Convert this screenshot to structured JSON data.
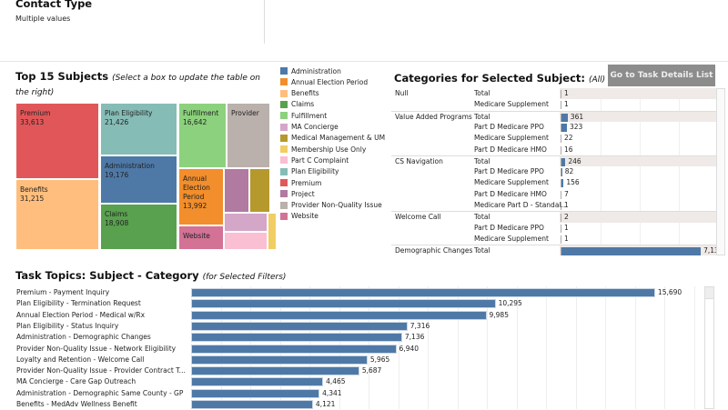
{
  "filter": {
    "title": "Contact Type",
    "value": "Multiple values"
  },
  "treemap": {
    "title": "Top 15 Subjects",
    "subtitle": "(Select a box to update the table on the right)",
    "boxes": [
      {
        "name": "Premium",
        "value": "33,613",
        "color": "#e15759"
      },
      {
        "name": "Benefits",
        "value": "31,215",
        "color": "#ffbe7d"
      },
      {
        "name": "Plan Eligibility",
        "value": "21,426",
        "color": "#86bcb6"
      },
      {
        "name": "Administration",
        "value": "19,176",
        "color": "#4e79a7"
      },
      {
        "name": "Claims",
        "value": "18,908",
        "color": "#59a14f"
      },
      {
        "name": "Fulfillment",
        "value": "16,642",
        "color": "#8cd17d"
      },
      {
        "name": "Provider",
        "value": "",
        "color": "#bab0ac"
      },
      {
        "name": "Annual Election Period",
        "value": "13,992",
        "color": "#f28e2b"
      },
      {
        "name": "Website",
        "value": "",
        "color": "#d37295"
      },
      {
        "name": "",
        "value": "",
        "color": "#b07aa1"
      },
      {
        "name": "",
        "value": "",
        "color": "#b6992d"
      },
      {
        "name": "",
        "value": "",
        "color": "#d4a6c8"
      },
      {
        "name": "",
        "value": "",
        "color": "#fabfd2"
      },
      {
        "name": "",
        "value": "",
        "color": "#f1ce63"
      }
    ]
  },
  "legend": [
    {
      "label": "Administration",
      "color": "#4e79a7"
    },
    {
      "label": "Annual Election Period",
      "color": "#f28e2b"
    },
    {
      "label": "Benefits",
      "color": "#ffbe7d"
    },
    {
      "label": "Claims",
      "color": "#59a14f"
    },
    {
      "label": "Fulfillment",
      "color": "#8cd17d"
    },
    {
      "label": "MA Concierge",
      "color": "#d4a6c8"
    },
    {
      "label": "Medical Management & UM",
      "color": "#b6992d"
    },
    {
      "label": "Membership Use Only",
      "color": "#f1ce63"
    },
    {
      "label": "Part C Complaint",
      "color": "#fabfd2"
    },
    {
      "label": "Plan Eligibility",
      "color": "#86bcb6"
    },
    {
      "label": "Premium",
      "color": "#e15759"
    },
    {
      "label": "Project",
      "color": "#b07aa1"
    },
    {
      "label": "Provider Non-Quality Issue",
      "color": "#bab0ac"
    },
    {
      "label": "Website",
      "color": "#d37295"
    }
  ],
  "categories": {
    "title": "Categories for Selected Subject:",
    "filter": "(All)",
    "button": "Go to Task Details List",
    "rows": [
      {
        "group": "Null",
        "cat": "Total",
        "value": "1",
        "n": 1,
        "total": true
      },
      {
        "group": "",
        "cat": "Medicare Supplement",
        "value": "1",
        "n": 1
      },
      {
        "group": "Value Added Programs",
        "cat": "Total",
        "value": "361",
        "n": 361,
        "total": true
      },
      {
        "group": "",
        "cat": "Part D Medicare PPO",
        "value": "323",
        "n": 323
      },
      {
        "group": "",
        "cat": "Medicare Supplement",
        "value": "22",
        "n": 22
      },
      {
        "group": "",
        "cat": "Part D Medicare HMO",
        "value": "16",
        "n": 16
      },
      {
        "group": "CS Navigation",
        "cat": "Total",
        "value": "246",
        "n": 246,
        "total": true
      },
      {
        "group": "",
        "cat": "Part D Medicare PPO",
        "value": "82",
        "n": 82
      },
      {
        "group": "",
        "cat": "Medicare Supplement",
        "value": "156",
        "n": 156
      },
      {
        "group": "",
        "cat": "Part D Medicare HMO",
        "value": "7",
        "n": 7
      },
      {
        "group": "",
        "cat": "Medicare Part D - Standal..",
        "value": "1",
        "n": 1
      },
      {
        "group": "Welcome Call",
        "cat": "Total",
        "value": "2",
        "n": 2,
        "total": true
      },
      {
        "group": "",
        "cat": "Part D Medicare PPO",
        "value": "1",
        "n": 1
      },
      {
        "group": "",
        "cat": "Medicare Supplement",
        "value": "1",
        "n": 1
      },
      {
        "group": "Demographic Changes",
        "cat": "Total",
        "value": "7,136",
        "n": 7136,
        "total": true
      }
    ]
  },
  "topics": {
    "title": "Task Topics: Subject - Category",
    "subtitle": "(for Selected Filters)",
    "items": [
      {
        "label": "Premium - Payment Inquiry",
        "value": 15690,
        "text": "15,690"
      },
      {
        "label": "Plan Eligibility - Termination Request",
        "value": 10295,
        "text": "10,295"
      },
      {
        "label": "Annual Election Period - Medical w/Rx",
        "value": 9985,
        "text": "9,985"
      },
      {
        "label": "Plan Eligibility - Status Inquiry",
        "value": 7316,
        "text": "7,316"
      },
      {
        "label": "Administration - Demographic Changes",
        "value": 7136,
        "text": "7,136"
      },
      {
        "label": "Provider Non-Quality Issue - Network Eligibility",
        "value": 6940,
        "text": "6,940"
      },
      {
        "label": "Loyalty and Retention - Welcome Call",
        "value": 5965,
        "text": "5,965"
      },
      {
        "label": "Provider Non-Quality Issue - Provider Contract Termi..",
        "value": 5687,
        "text": "5,687"
      },
      {
        "label": "MA Concierge - Care Gap Outreach",
        "value": 4465,
        "text": "4,465"
      },
      {
        "label": "Administration - Demographic Same County - GP",
        "value": 4341,
        "text": "4,341"
      },
      {
        "label": "Benefits - MedAdv Wellness Benefit",
        "value": 4121,
        "text": "4,121"
      }
    ]
  }
}
